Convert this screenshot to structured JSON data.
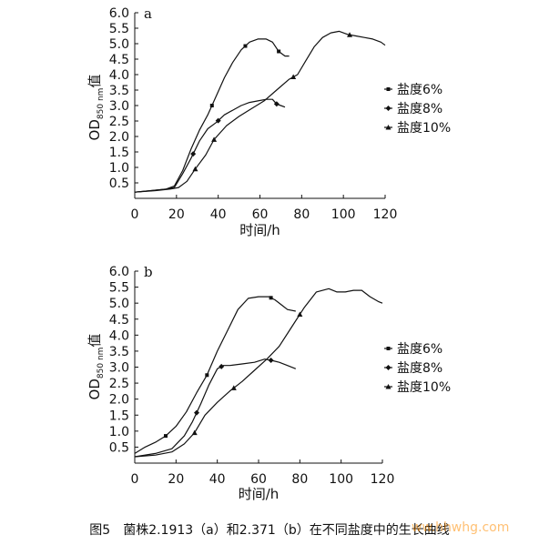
{
  "caption": "图5　菌株2.1913（a）和2.371（b）在不同盐度中的生长曲线",
  "watermark": "ww.hhwhg.com",
  "colors": {
    "ink": "#111111"
  },
  "chart_data": [
    {
      "type": "line",
      "panel_label": "a",
      "xlabel": "时间/h",
      "ylabel_main": "OD",
      "ylabel_sub": "850 nm",
      "ylabel_suffix": "值",
      "xlim": [
        0,
        120
      ],
      "ylim": [
        0,
        6.0
      ],
      "xticks": [
        0,
        20,
        40,
        60,
        80,
        100,
        120
      ],
      "yticks": [
        0.5,
        1.0,
        1.5,
        2.0,
        2.5,
        3.0,
        3.5,
        4.0,
        4.5,
        5.0,
        5.5,
        6.0
      ],
      "grid": false,
      "legend_position": "right",
      "series": [
        {
          "name": "盐度6%",
          "marker_x": [
            37,
            53,
            69
          ],
          "x": [
            0,
            8,
            15,
            19,
            23,
            27,
            31,
            35,
            39,
            43,
            47,
            51,
            55,
            59,
            63,
            66,
            69,
            72,
            74
          ],
          "y": [
            0.2,
            0.25,
            0.3,
            0.4,
            0.9,
            1.6,
            2.2,
            2.7,
            3.3,
            3.9,
            4.4,
            4.8,
            5.05,
            5.15,
            5.15,
            5.05,
            4.75,
            4.6,
            4.6
          ]
        },
        {
          "name": "盐度8%",
          "marker_x": [
            28,
            40,
            68
          ],
          "x": [
            0,
            8,
            15,
            19,
            23,
            27,
            31,
            35,
            39,
            43,
            47,
            51,
            55,
            59,
            63,
            66,
            68,
            70,
            72
          ],
          "y": [
            0.2,
            0.25,
            0.3,
            0.35,
            0.8,
            1.3,
            1.85,
            2.25,
            2.45,
            2.7,
            2.85,
            3.0,
            3.1,
            3.15,
            3.2,
            3.2,
            3.05,
            3.0,
            2.95
          ]
        },
        {
          "name": "盐度10%",
          "marker_x": [
            29,
            38,
            76,
            103
          ],
          "x": [
            0,
            10,
            17,
            21,
            25,
            29,
            34,
            38,
            44,
            50,
            56,
            62,
            68,
            74,
            78,
            82,
            86,
            90,
            94,
            98,
            102,
            106,
            110,
            114,
            118,
            120
          ],
          "y": [
            0.2,
            0.25,
            0.3,
            0.35,
            0.55,
            0.95,
            1.4,
            1.9,
            2.35,
            2.65,
            2.9,
            3.15,
            3.5,
            3.85,
            4.0,
            4.45,
            4.9,
            5.2,
            5.35,
            5.4,
            5.3,
            5.25,
            5.2,
            5.15,
            5.05,
            4.95
          ]
        }
      ]
    },
    {
      "type": "line",
      "panel_label": "b",
      "xlabel": "时间/h",
      "ylabel_main": "OD",
      "ylabel_sub": "850 nm",
      "ylabel_suffix": "值",
      "xlim": [
        0,
        120
      ],
      "ylim": [
        0,
        6.0
      ],
      "xticks": [
        0,
        20,
        40,
        60,
        80,
        100,
        120
      ],
      "yticks": [
        0.5,
        1.0,
        1.5,
        2.0,
        2.5,
        3.0,
        3.5,
        4.0,
        4.5,
        5.0,
        5.5,
        6.0
      ],
      "grid": false,
      "legend_position": "right",
      "series": [
        {
          "name": "盐度6%",
          "marker_x": [
            15,
            35,
            66
          ],
          "x": [
            0,
            5,
            10,
            15,
            20,
            25,
            30,
            35,
            40,
            45,
            50,
            55,
            60,
            65,
            68,
            71,
            74,
            78
          ],
          "y": [
            0.3,
            0.5,
            0.65,
            0.85,
            1.15,
            1.6,
            2.2,
            2.75,
            3.5,
            4.15,
            4.8,
            5.15,
            5.2,
            5.2,
            5.1,
            4.95,
            4.8,
            4.75
          ]
        },
        {
          "name": "盐度8%",
          "marker_x": [
            30,
            42,
            66
          ],
          "x": [
            0,
            10,
            18,
            24,
            28,
            32,
            36,
            40,
            43,
            46,
            52,
            58,
            63,
            67,
            70,
            74,
            78
          ],
          "y": [
            0.2,
            0.3,
            0.45,
            0.85,
            1.3,
            1.85,
            2.45,
            2.95,
            3.05,
            3.05,
            3.1,
            3.15,
            3.25,
            3.2,
            3.15,
            3.05,
            2.95
          ]
        },
        {
          "name": "盐度10%",
          "marker_x": [
            29,
            48,
            80
          ],
          "x": [
            0,
            10,
            18,
            24,
            29,
            34,
            40,
            46,
            52,
            58,
            64,
            70,
            76,
            82,
            88,
            94,
            98,
            102,
            106,
            110,
            114,
            118,
            120
          ],
          "y": [
            0.2,
            0.25,
            0.35,
            0.6,
            0.95,
            1.5,
            1.9,
            2.25,
            2.55,
            2.9,
            3.25,
            3.65,
            4.25,
            4.85,
            5.35,
            5.45,
            5.35,
            5.35,
            5.4,
            5.4,
            5.2,
            5.05,
            5.0
          ]
        }
      ]
    }
  ]
}
